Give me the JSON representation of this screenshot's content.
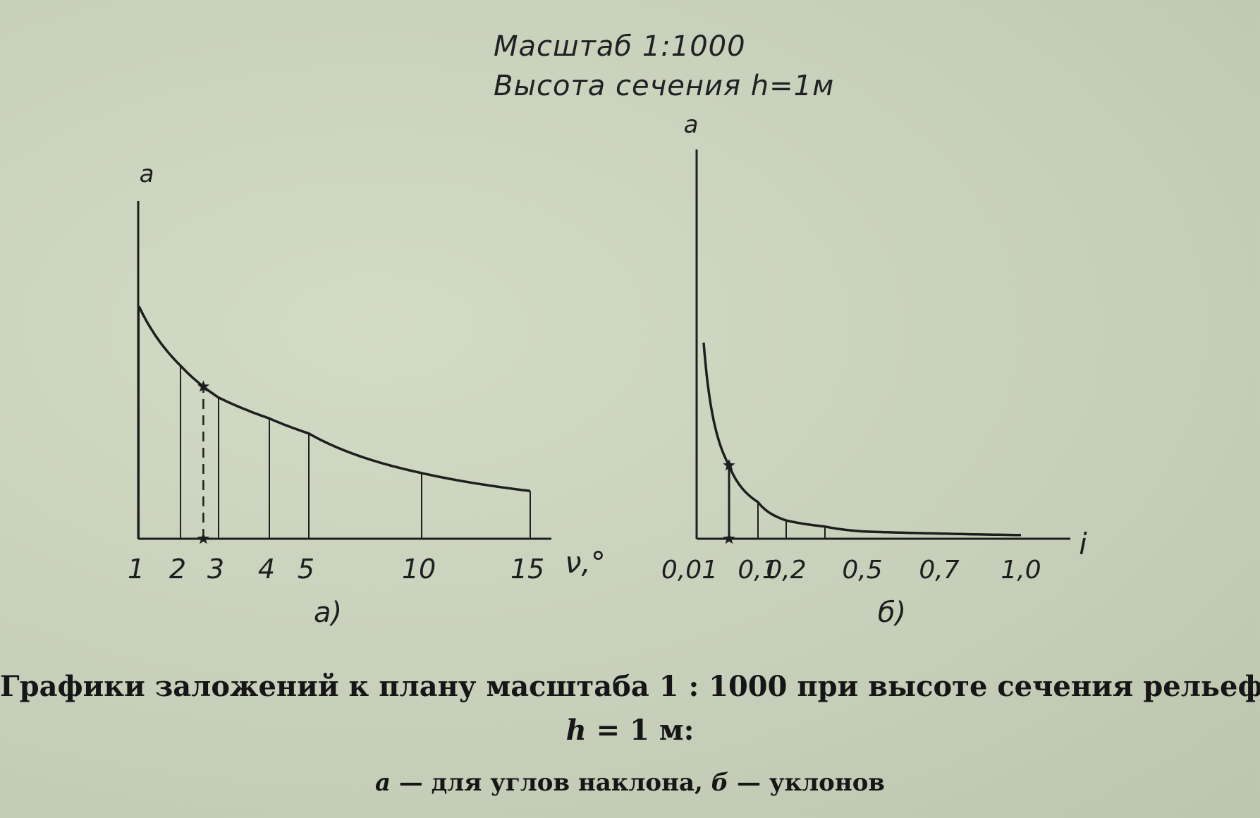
{
  "header": {
    "scale_line": "Масштаб 1:1000",
    "height_line": "Высота сечения h=1м"
  },
  "chart_data": [
    {
      "type": "line",
      "panel_label": "а)",
      "title": "",
      "ylabel": "а",
      "xlabel": "ν,°",
      "tick_labels": [
        "1",
        "2",
        "3",
        "4",
        "5",
        "10",
        "15"
      ],
      "x": [
        1,
        2,
        2.6,
        3,
        4,
        5,
        10,
        15
      ],
      "y": [
        57.3,
        28.6,
        22.0,
        19.1,
        14.3,
        11.4,
        5.7,
        3.7
      ],
      "marked_point": {
        "x": 2.6,
        "y": 22.0
      },
      "grid": false
    },
    {
      "type": "line",
      "panel_label": "б)",
      "title": "",
      "ylabel": "а",
      "xlabel": "i",
      "tick_labels": [
        "0,01",
        "0,1",
        "0,2",
        "0,5",
        "0,7",
        "1,0"
      ],
      "x": [
        0.01,
        0.05,
        0.1,
        0.2,
        0.3,
        0.5,
        0.7,
        1.0
      ],
      "y": [
        100,
        20,
        10,
        5,
        3.3,
        2,
        1.4,
        1
      ],
      "marked_point": {
        "x": 0.05,
        "y": 20
      },
      "grid": false
    }
  ],
  "caption": {
    "line1": "Графики заложений к плану масштаба 1 : 1000 при высоте сечения рельефа",
    "line2_var": "h",
    "line2_rest": " = 1 м:",
    "line3_a": "а",
    "line3_mid": " — для углов наклона, ",
    "line3_b": "б",
    "line3_end": " — уклонов"
  }
}
